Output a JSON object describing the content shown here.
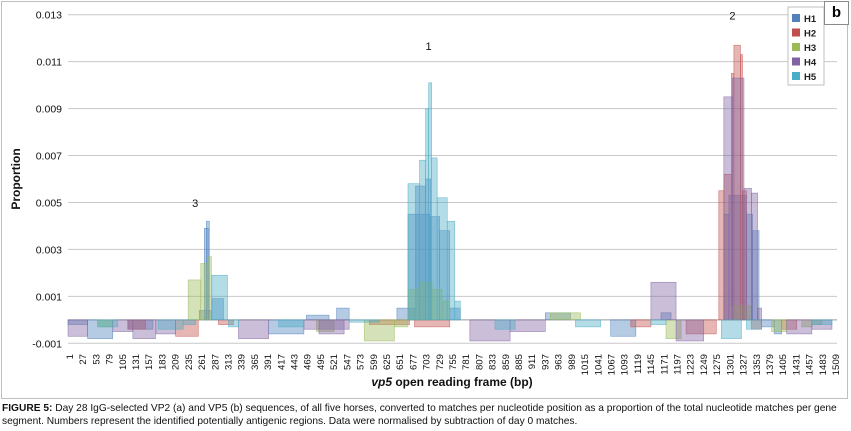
{
  "panel_label": "b",
  "caption": {
    "lead": "FIGURE 5:",
    "text": " Day 28 IgG-selected VP2 (a) and VP5 (b) sequences, of all five horses, converted to matches per nucleotide position as a proportion of the total nucleotide matches per gene segment. Numbers represent the identified potentially antigenic regions. Data were normalised by subtraction of day 0 matches."
  },
  "chart_data": {
    "type": "bar",
    "xlabel": "vp5 open reading frame (bp)",
    "ylabel": "Proportion",
    "xlim": [
      1,
      1530
    ],
    "ylim": [
      -0.0012,
      0.0132
    ],
    "yticks": [
      "-0.001",
      "0.001",
      "0.003",
      "0.005",
      "0.007",
      "0.009",
      "0.011",
      "0.013"
    ],
    "ytick_values": [
      -0.001,
      0.001,
      0.003,
      0.005,
      0.007,
      0.009,
      0.011,
      0.013
    ],
    "xticks": [
      "1",
      "27",
      "53",
      "79",
      "105",
      "131",
      "157",
      "183",
      "209",
      "235",
      "261",
      "287",
      "313",
      "339",
      "365",
      "391",
      "417",
      "443",
      "469",
      "495",
      "521",
      "547",
      "573",
      "599",
      "625",
      "651",
      "677",
      "703",
      "729",
      "755",
      "781",
      "807",
      "833",
      "859",
      "885",
      "911",
      "937",
      "963",
      "989",
      "1015",
      "1041",
      "1067",
      "1093",
      "1119",
      "1145",
      "1171",
      "1197",
      "1223",
      "1249",
      "1275",
      "1301",
      "1327",
      "1353",
      "1379",
      "1405",
      "1431",
      "1457",
      "1483",
      "1509"
    ],
    "grid": true,
    "legend_position": "top-right",
    "colors": {
      "H1": "#4f81bd",
      "H2": "#c0504d",
      "H3": "#9bbb59",
      "H4": "#8064a2",
      "H5": "#4bacc6"
    },
    "annotations": [
      {
        "text": "1",
        "x": 718,
        "y": 0.0115
      },
      {
        "text": "2",
        "x": 1322,
        "y": 0.0128
      },
      {
        "text": "3",
        "x": 254,
        "y": 0.0048
      }
    ],
    "series": [
      {
        "name": "H1",
        "segments": [
          [
            1,
            40,
            -0.0002
          ],
          [
            40,
            90,
            -0.0008
          ],
          [
            120,
            170,
            -0.0004
          ],
          [
            262,
            286,
            0.0004
          ],
          [
            272,
            280,
            0.0039
          ],
          [
            276,
            282,
            0.0042
          ],
          [
            287,
            310,
            0.0009
          ],
          [
            400,
            470,
            -0.0006
          ],
          [
            475,
            520,
            0.0002
          ],
          [
            535,
            560,
            0.0005
          ],
          [
            655,
            690,
            0.0005
          ],
          [
            677,
            720,
            0.0045
          ],
          [
            692,
            712,
            0.0057
          ],
          [
            712,
            722,
            0.006
          ],
          [
            722,
            740,
            0.0044
          ],
          [
            740,
            760,
            0.0038
          ],
          [
            760,
            781,
            0.0005
          ],
          [
            950,
            1000,
            0.0003
          ],
          [
            1080,
            1130,
            -0.0007
          ],
          [
            1180,
            1200,
            0.0003
          ],
          [
            1305,
            1315,
            0.0045
          ],
          [
            1315,
            1350,
            0.0053
          ],
          [
            1350,
            1362,
            0.0045
          ],
          [
            1362,
            1375,
            0.0038
          ],
          [
            1380,
            1405,
            -0.0003
          ],
          [
            1405,
            1420,
            -0.0006
          ]
        ]
      },
      {
        "name": "H2",
        "segments": [
          [
            120,
            155,
            -0.0004
          ],
          [
            215,
            260,
            -0.0007
          ],
          [
            300,
            330,
            -0.0002
          ],
          [
            600,
            680,
            -0.0002
          ],
          [
            690,
            760,
            -0.0003
          ],
          [
            1120,
            1160,
            -0.0003
          ],
          [
            1230,
            1290,
            -0.0006
          ],
          [
            1295,
            1305,
            0.0055
          ],
          [
            1305,
            1320,
            0.0062
          ],
          [
            1320,
            1325,
            0.0105
          ],
          [
            1325,
            1338,
            0.0117
          ],
          [
            1338,
            1342,
            0.0113
          ],
          [
            1342,
            1350,
            0.0055
          ],
          [
            1360,
            1380,
            -0.0004
          ],
          [
            1420,
            1450,
            -0.0004
          ]
        ]
      },
      {
        "name": "H3",
        "segments": [
          [
            60,
            90,
            -0.0003
          ],
          [
            240,
            265,
            0.0017
          ],
          [
            265,
            278,
            0.0024
          ],
          [
            278,
            286,
            0.0027
          ],
          [
            495,
            530,
            -0.0005
          ],
          [
            590,
            650,
            -0.0009
          ],
          [
            650,
            677,
            -0.0003
          ],
          [
            677,
            700,
            0.0013
          ],
          [
            700,
            725,
            0.0016
          ],
          [
            725,
            745,
            0.0013
          ],
          [
            745,
            760,
            0.0008
          ],
          [
            960,
            1020,
            0.0003
          ],
          [
            1190,
            1220,
            -0.0008
          ],
          [
            1320,
            1360,
            0.0006
          ],
          [
            1400,
            1430,
            -0.0005
          ],
          [
            1460,
            1480,
            -0.0003
          ],
          [
            1480,
            1500,
            -0.0002
          ]
        ]
      },
      {
        "name": "H4",
        "segments": [
          [
            1,
            40,
            -0.0007
          ],
          [
            90,
            130,
            -0.0005
          ],
          [
            130,
            175,
            -0.0008
          ],
          [
            176,
            215,
            -0.0006
          ],
          [
            340,
            400,
            -0.0008
          ],
          [
            470,
            560,
            -0.0004
          ],
          [
            500,
            550,
            -0.0006
          ],
          [
            800,
            880,
            -0.0009
          ],
          [
            880,
            950,
            -0.0005
          ],
          [
            1160,
            1210,
            0.0016
          ],
          [
            1210,
            1265,
            -0.0009
          ],
          [
            1305,
            1322,
            0.0095
          ],
          [
            1322,
            1345,
            0.0103
          ],
          [
            1345,
            1360,
            0.0056
          ],
          [
            1360,
            1372,
            0.0054
          ],
          [
            1372,
            1380,
            0.0005
          ],
          [
            1430,
            1480,
            -0.0006
          ],
          [
            1480,
            1520,
            -0.0004
          ]
        ]
      },
      {
        "name": "H5",
        "segments": [
          [
            60,
            100,
            -0.0003
          ],
          [
            180,
            230,
            -0.0004
          ],
          [
            230,
            255,
            -0.0002
          ],
          [
            287,
            318,
            0.0019
          ],
          [
            320,
            340,
            -0.0003
          ],
          [
            420,
            470,
            -0.0003
          ],
          [
            560,
            620,
            -0.0001
          ],
          [
            677,
            700,
            0.0058
          ],
          [
            700,
            712,
            0.0068
          ],
          [
            712,
            718,
            0.009
          ],
          [
            718,
            724,
            0.0101
          ],
          [
            724,
            735,
            0.0069
          ],
          [
            735,
            755,
            0.0052
          ],
          [
            755,
            770,
            0.0042
          ],
          [
            770,
            781,
            0.0008
          ],
          [
            850,
            890,
            -0.0004
          ],
          [
            1010,
            1060,
            -0.0003
          ],
          [
            1160,
            1190,
            -0.0002
          ],
          [
            1300,
            1340,
            -0.0008
          ],
          [
            1350,
            1380,
            -0.0004
          ],
          [
            1480,
            1520,
            -0.0002
          ]
        ]
      }
    ]
  }
}
